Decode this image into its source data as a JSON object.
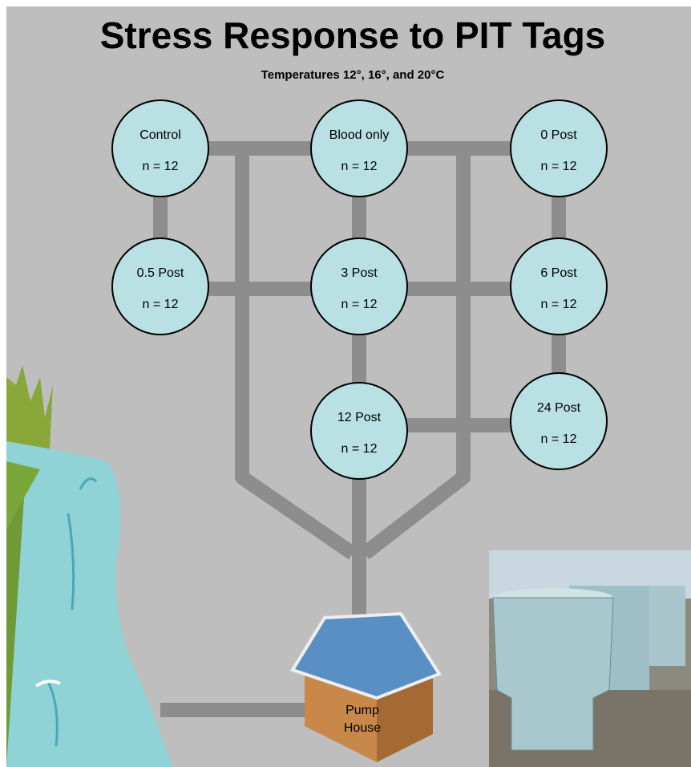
{
  "header": {
    "title": "Stress Response to PIT Tags",
    "subtitle": "Temperatures 12°, 16°, and 20°C"
  },
  "nodes": [
    {
      "label": "Control",
      "n": "n = 12"
    },
    {
      "label": "Blood only",
      "n": "n = 12"
    },
    {
      "label": "0 Post",
      "n": "n = 12"
    },
    {
      "label": "0.5 Post",
      "n": "n = 12"
    },
    {
      "label": "3 Post",
      "n": "n = 12"
    },
    {
      "label": "6 Post",
      "n": "n = 12"
    },
    {
      "label": "12 Post",
      "n": "n = 12"
    },
    {
      "label": "24 Post",
      "n": "n = 12"
    }
  ],
  "pump_house": {
    "line1": "Pump",
    "line2": "House"
  }
}
